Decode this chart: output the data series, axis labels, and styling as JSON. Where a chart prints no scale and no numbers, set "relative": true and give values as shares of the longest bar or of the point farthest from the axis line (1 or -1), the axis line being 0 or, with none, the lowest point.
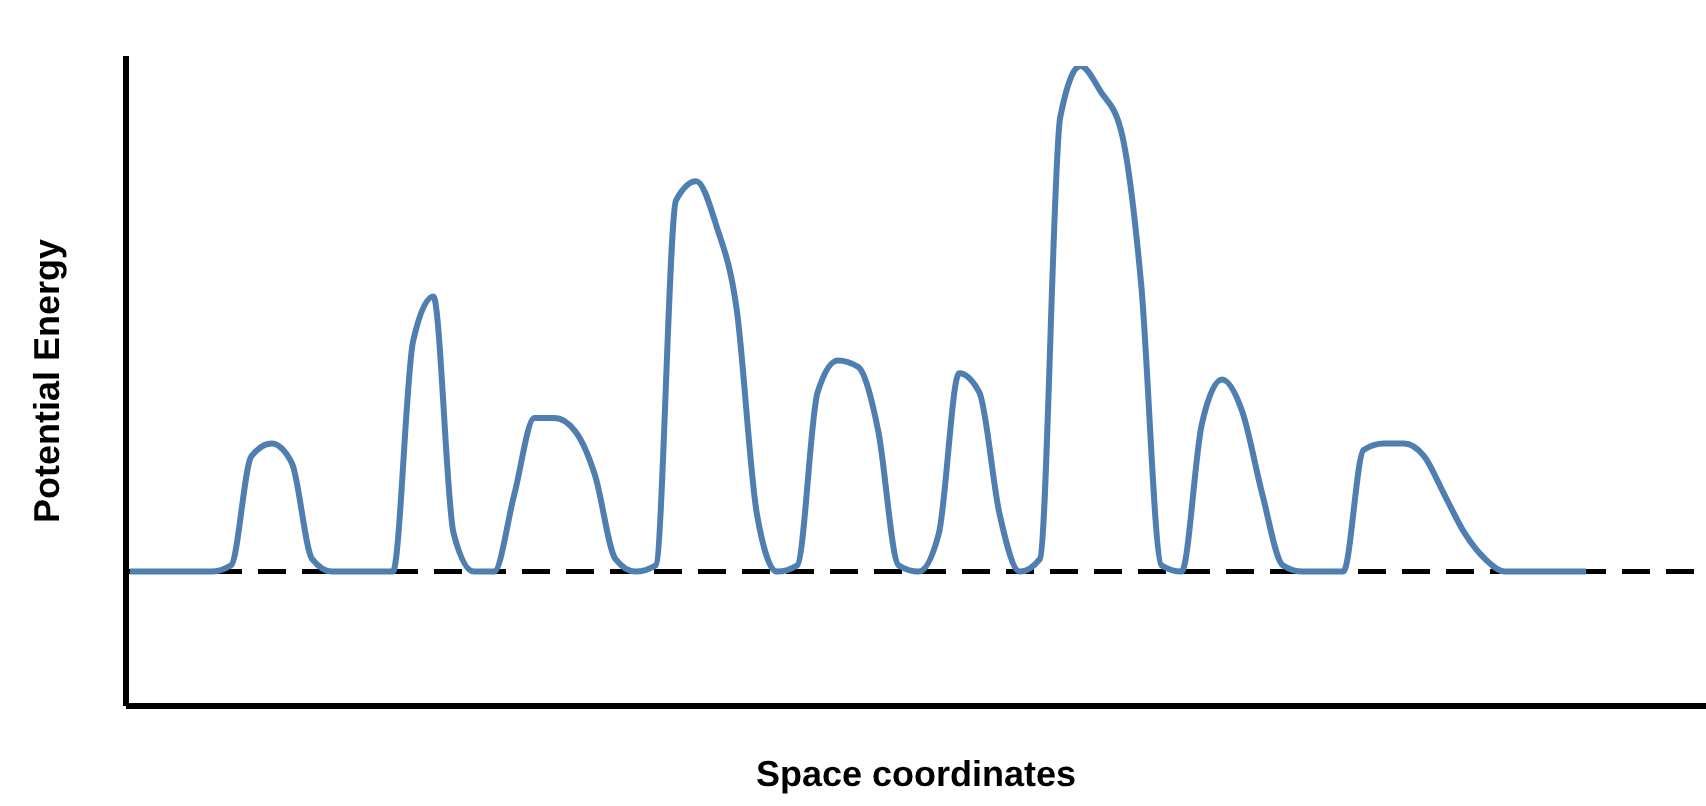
{
  "chart_data": {
    "type": "line",
    "relative": true,
    "xlabel": "Space coordinates",
    "ylabel": "Potential Energy",
    "categories": [
      null,
      null,
      null,
      null,
      null,
      null,
      null,
      null,
      null,
      null,
      null,
      null,
      null,
      null,
      null,
      null,
      null,
      null,
      null,
      null,
      null,
      null,
      null,
      null,
      null,
      null,
      null,
      null,
      null,
      null,
      null,
      null,
      null,
      null,
      null,
      null,
      null,
      null,
      null,
      null,
      null,
      null,
      null,
      null,
      null,
      null,
      null,
      null,
      null,
      null,
      null,
      null,
      null,
      null,
      null,
      null,
      null,
      null,
      null,
      null,
      null,
      null,
      null,
      null,
      null,
      null,
      null,
      null,
      null,
      null,
      null,
      null,
      null
    ],
    "series": [
      {
        "color": "#4f7fb0",
        "values": [
          0.21,
          0.21,
          0.21,
          0.21,
          0.21,
          0.22,
          0.39,
          0.41,
          0.38,
          0.23,
          0.21,
          0.21,
          0.21,
          0.21,
          0.57,
          0.64,
          0.27,
          0.21,
          0.21,
          0.33,
          0.45,
          0.45,
          0.43,
          0.36,
          0.23,
          0.21,
          0.22,
          0.79,
          0.82,
          0.75,
          0.62,
          0.3,
          0.21,
          0.22,
          0.49,
          0.54,
          0.53,
          0.43,
          0.22,
          0.21,
          0.27,
          0.52,
          0.49,
          0.3,
          0.21,
          0.23,
          0.92,
          1,
          0.96,
          0.9,
          0.66,
          0.22,
          0.21,
          0.44,
          0.51,
          0.46,
          0.33,
          0.22,
          0.21,
          0.21,
          0.21,
          0.4,
          0.41,
          0.41,
          0.39,
          0.33,
          0.27,
          0.23,
          0.21,
          0.21,
          0.21,
          0.21,
          0.21
        ]
      }
    ],
    "ref_lines": [
      {
        "axis": "y",
        "value": 0.21,
        "color": "#000000",
        "line_style": "dashed"
      }
    ],
    "marker": "none",
    "line_style": "solid"
  }
}
